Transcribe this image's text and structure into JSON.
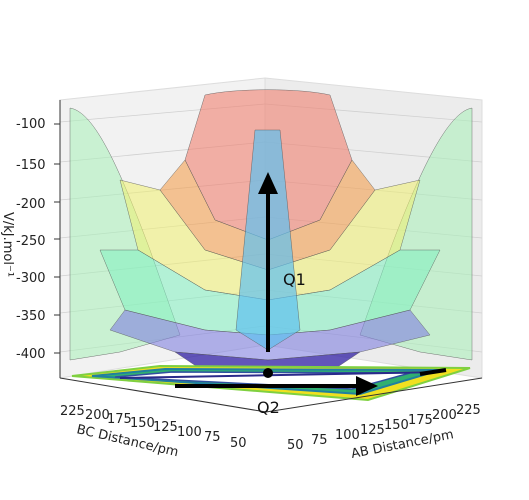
{
  "chart_data": {
    "type": "surface3d",
    "title": "",
    "zlabel": "V/kJ.mol⁻¹",
    "xlabel": "AB Distance/pm",
    "ylabel": "BC Distance/pm",
    "z_ticks": [
      "-100",
      "-150",
      "-200",
      "-250",
      "-300",
      "-350",
      "-400"
    ],
    "ab_ticks": [
      "50",
      "75",
      "100",
      "125",
      "150",
      "175",
      "200",
      "225"
    ],
    "bc_ticks": [
      "225",
      "200",
      "175",
      "150",
      "125",
      "100",
      "75",
      "50"
    ],
    "annotations": [
      {
        "label": "Q1",
        "direction": "up"
      },
      {
        "label": "Q2",
        "direction": "along AB"
      }
    ],
    "colors": {
      "low": "#3b2aa8",
      "mid1": "#5fd0f0",
      "mid2": "#80f0a0",
      "mid3": "#f0f070",
      "high": "#f08070",
      "contour_floor": "#2f6fb0"
    }
  }
}
